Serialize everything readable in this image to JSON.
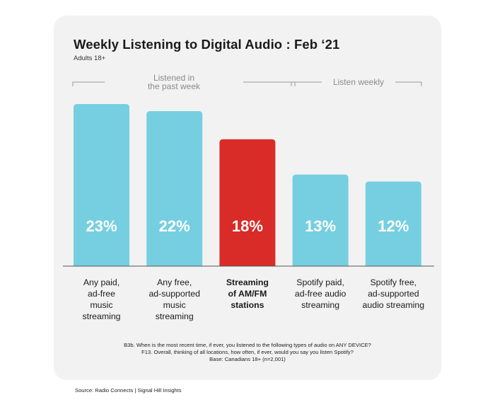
{
  "title": "Weekly Listening to Digital Audio : Feb ‘21",
  "subtitle": "Adults 18+",
  "groups": [
    {
      "label_lines": [
        "Listened in",
        "the past week"
      ]
    },
    {
      "label_lines": [
        "Listen weekly"
      ]
    }
  ],
  "chart_data": {
    "type": "bar",
    "title": "Weekly Listening to Digital Audio : Feb ‘21",
    "subtitle": "Adults 18+",
    "categories": [
      "Any paid, ad-free music streaming",
      "Any free, ad-supported music streaming",
      "Streaming of AM/FM stations",
      "Spotify paid, ad-free audio streaming",
      "Spotify free, ad-supported audio streaming"
    ],
    "category_lines": [
      [
        "Any paid,",
        "ad-free",
        "music",
        "streaming"
      ],
      [
        "Any free,",
        "ad-supported",
        "music",
        "streaming"
      ],
      [
        "Streaming",
        "of AM/FM",
        "stations"
      ],
      [
        "Spotify paid,",
        "ad-free audio",
        "streaming"
      ],
      [
        "Spotify free,",
        "ad-supported",
        "audio streaming"
      ]
    ],
    "values": [
      23,
      22,
      18,
      13,
      12
    ],
    "value_labels": [
      "23%",
      "22%",
      "18%",
      "13%",
      "12%"
    ],
    "highlight_index": 2,
    "ylim": [
      0,
      23
    ],
    "grid": false,
    "colors": {
      "default": "#76cfe0",
      "highlight": "#d92b27",
      "label": "#ffffff"
    }
  },
  "footnotes": [
    "B3b. When is the most recent time, if ever, you listened to the following types of audio on ANY DEVICE?",
    "F13. Overall, thinking of all locations, how often, if ever, would you say you listen Spotify?",
    "Base: Canadians 18+ (n=2,001)"
  ],
  "source": "Source: Radio Connects | Signal Hill Insights"
}
